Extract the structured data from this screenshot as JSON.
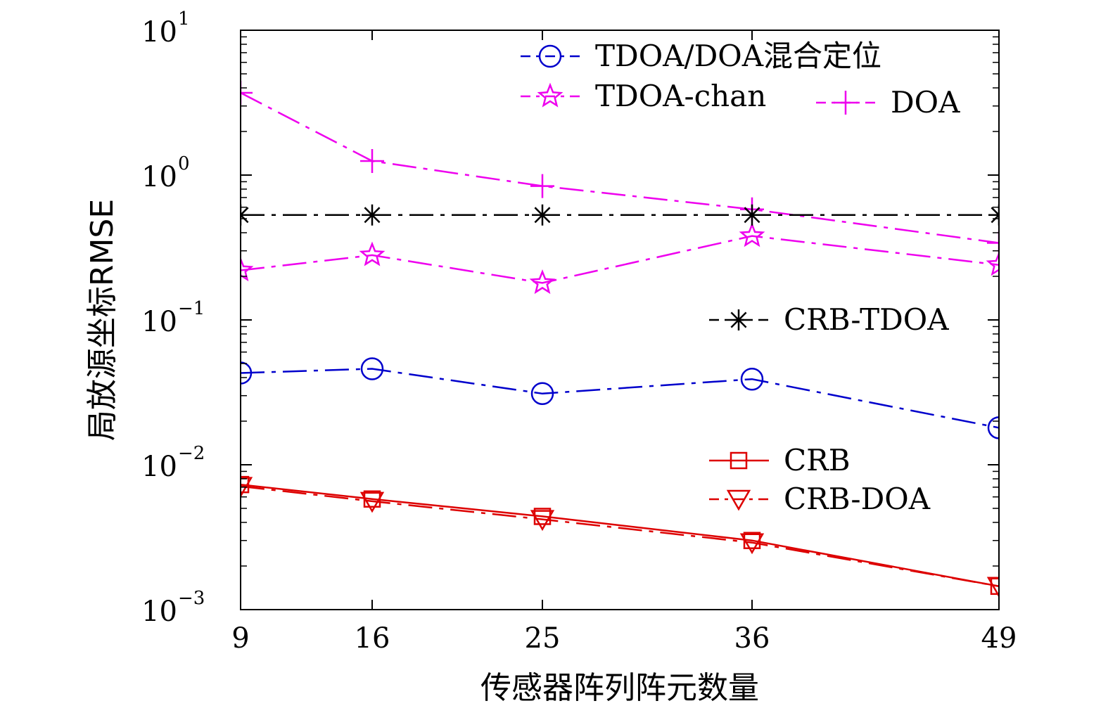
{
  "chart_data": {
    "type": "line",
    "title": "",
    "xlabel": "传感器阵列阵元数量",
    "ylabel": "局放源坐标RMSE",
    "x": [
      9,
      16,
      25,
      36,
      49
    ],
    "xticks": [
      "9",
      "16",
      "25",
      "36",
      "49"
    ],
    "xlim": [
      9,
      49
    ],
    "yscale": "log",
    "ylim": [
      0.001,
      10
    ],
    "yticks": [
      {
        "value": 10,
        "base": "10",
        "exp": "1"
      },
      {
        "value": 1,
        "base": "10",
        "exp": "0"
      },
      {
        "value": 0.1,
        "base": "10",
        "exp": "−1"
      },
      {
        "value": 0.01,
        "base": "10",
        "exp": "−2"
      },
      {
        "value": 0.001,
        "base": "10",
        "exp": "−3"
      }
    ],
    "grid": false,
    "series": [
      {
        "name": "TDOA/DOA混合定位",
        "values": [
          0.043,
          0.046,
          0.031,
          0.039,
          0.018
        ],
        "color": "#0000cc",
        "marker": "circle",
        "dash": "dashdot"
      },
      {
        "name": "TDOA-chan",
        "values": [
          0.22,
          0.28,
          0.18,
          0.38,
          0.24
        ],
        "color": "#ee00ee",
        "marker": "star",
        "dash": "dashdot"
      },
      {
        "name": "DOA",
        "values": [
          3.7,
          1.25,
          0.84,
          0.58,
          0.34
        ],
        "color": "#ee00ee",
        "marker": "plus",
        "dash": "dashdot"
      },
      {
        "name": "CRB-TDOA",
        "values": [
          0.53,
          0.53,
          0.53,
          0.53,
          0.53
        ],
        "color": "#000000",
        "marker": "asterisk",
        "dash": "dashdot"
      },
      {
        "name": "CRB",
        "values": [
          0.0073,
          0.0058,
          0.0044,
          0.003,
          0.00145
        ],
        "color": "#dd0000",
        "marker": "square",
        "dash": "solid"
      },
      {
        "name": "CRB-DOA",
        "values": [
          0.0071,
          0.0056,
          0.0042,
          0.0029,
          0.00145
        ],
        "color": "#dd0000",
        "marker": "triangle-down",
        "dash": "dashdot"
      }
    ]
  }
}
